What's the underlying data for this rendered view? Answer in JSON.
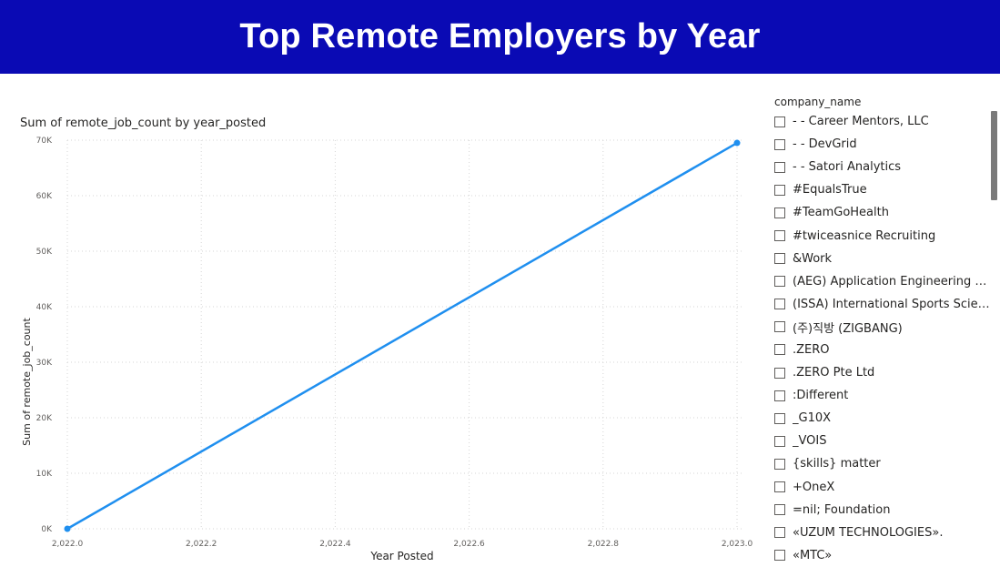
{
  "page": {
    "title": "Top Remote Employers by Year"
  },
  "chart_data": {
    "type": "line",
    "title": "Sum of remote_job_count by year_posted",
    "xlabel": "Year Posted",
    "ylabel": "Sum of remote_job_count",
    "x": [
      2022,
      2023
    ],
    "series": [
      {
        "values": [
          0,
          69500
        ],
        "color": "#1f8fef"
      }
    ],
    "xlim": [
      2022,
      2023
    ],
    "ylim": [
      0,
      70000
    ],
    "xticks": [
      2022.0,
      2022.2,
      2022.4,
      2022.6,
      2022.8,
      2023.0
    ],
    "xtick_labels": [
      "2,022.0",
      "2,022.2",
      "2,022.4",
      "2,022.6",
      "2,022.8",
      "2,023.0"
    ],
    "yticks": [
      0,
      10000,
      20000,
      30000,
      40000,
      50000,
      60000,
      70000
    ],
    "ytick_labels": [
      "0K",
      "10K",
      "20K",
      "30K",
      "40K",
      "50K",
      "60K",
      "70K"
    ],
    "grid": true
  },
  "slicer": {
    "header": "company_name",
    "items": [
      "- - Career Mentors, LLC",
      "- - DevGrid",
      "- - Satori Analytics",
      "#EqualsTrue",
      "#TeamGoHealth",
      "#twiceasnice Recruiting",
      "&Work",
      "(AEG) Application Engineering Gro...",
      "(ISSA) International Sports Science...",
      "(주)직방 (ZIGBANG)",
      ".ZERO",
      ".ZERO Pte Ltd",
      ":Different",
      "_G10X",
      "_VOIS",
      "{skills} matter",
      "+OneX",
      "=nil; Foundation",
      "«UZUM TECHNOLOGIES».",
      "«MTC»"
    ]
  }
}
